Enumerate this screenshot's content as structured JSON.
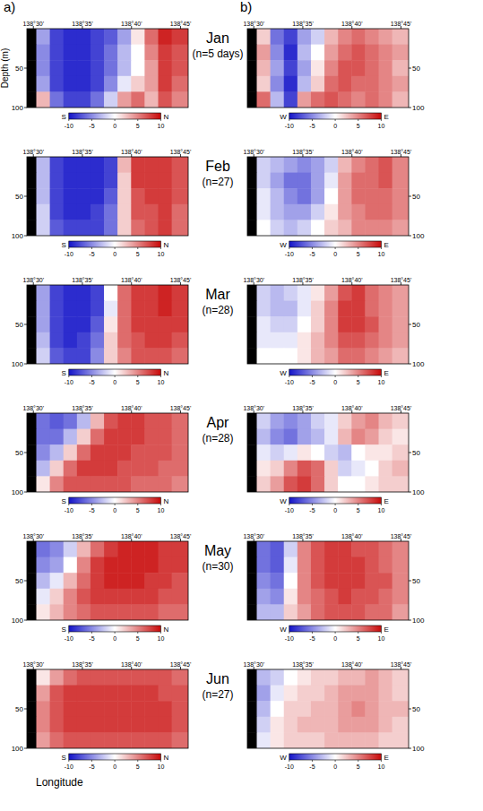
{
  "chart_data": {
    "type": "heatmap",
    "panel_letters": [
      "a)",
      "b)"
    ],
    "y_title": "Depth (m)",
    "x_title": "Longitude",
    "xlim": [
      138.489,
      138.763
    ],
    "xticks": [
      {
        "value": 138.5,
        "label": "138°30'"
      },
      {
        "value": 138.5833,
        "label": "138°35'"
      },
      {
        "value": 138.6667,
        "label": "138°40'"
      },
      {
        "value": 138.75,
        "label": "138°45'"
      }
    ],
    "ylim": [
      0,
      100
    ],
    "yticks": [
      50,
      100
    ],
    "x_edges": [
      138.489,
      138.505,
      138.528,
      138.551,
      138.574,
      138.597,
      138.62,
      138.643,
      138.666,
      138.689,
      138.712,
      138.735,
      138.763
    ],
    "depth_edges": [
      0,
      20,
      40,
      60,
      80,
      100
    ],
    "colorbar": {
      "range": [
        -10,
        10
      ],
      "ticks": [
        -10,
        -5,
        0,
        5,
        10
      ],
      "colors": [
        "#1414c8",
        "#ffffff",
        "#c80a0a"
      ]
    },
    "components": [
      {
        "low_label": "S",
        "high_label": "N"
      },
      {
        "low_label": "W",
        "high_label": "E"
      }
    ],
    "panels": [
      {
        "month": "Jan",
        "n_label": "(n=5 days)",
        "cells": [
          [
            [
              null,
              -4,
              -8,
              -9,
              -9,
              -8,
              -7,
              -4,
              1,
              6,
              9,
              8
            ],
            [
              null,
              -5,
              -8,
              -9,
              -9,
              -8,
              -6,
              -3,
              0,
              5,
              8,
              7
            ],
            [
              null,
              -5,
              -8,
              -9,
              -9,
              -8,
              -6,
              -3,
              0,
              4,
              8,
              7
            ],
            [
              null,
              -4,
              -8,
              -9,
              -9,
              -8,
              -5,
              -1,
              2,
              4,
              8,
              6
            ],
            [
              null,
              3,
              -6,
              -8,
              -8,
              -6,
              -2,
              4,
              6,
              3,
              7,
              5
            ]
          ],
          [
            [
              null,
              2,
              -6,
              -8,
              -4,
              -2,
              3,
              5,
              6,
              5,
              4,
              3
            ],
            [
              null,
              4,
              -5,
              -9,
              -3,
              0,
              4,
              6,
              7,
              6,
              5,
              4
            ],
            [
              null,
              3,
              -4,
              -8,
              -4,
              1,
              5,
              7,
              7,
              6,
              5,
              3
            ],
            [
              null,
              2,
              -5,
              -9,
              -3,
              2,
              6,
              7,
              6,
              6,
              5,
              4
            ],
            [
              null,
              6,
              -3,
              -8,
              4,
              6,
              7,
              6,
              5,
              6,
              5,
              3
            ]
          ]
        ]
      },
      {
        "month": "Feb",
        "n_label": "(n=27)",
        "cells": [
          [
            [
              null,
              -3,
              -8,
              -9,
              -9,
              -9,
              -8,
              3,
              8,
              8,
              8,
              7
            ],
            [
              null,
              -3,
              -8,
              -9,
              -9,
              -9,
              -8,
              2,
              8,
              8,
              8,
              7
            ],
            [
              null,
              -3,
              -8,
              -9,
              -9,
              -9,
              -7,
              2,
              7,
              8,
              8,
              7
            ],
            [
              null,
              -2,
              -8,
              -9,
              -9,
              -8,
              -6,
              2,
              7,
              7,
              8,
              6
            ],
            [
              null,
              -2,
              -7,
              -8,
              -8,
              -8,
              -6,
              2,
              6,
              7,
              8,
              6
            ]
          ],
          [
            [
              null,
              -2,
              -3,
              -4,
              -5,
              -4,
              -2,
              3,
              5,
              6,
              7,
              5
            ],
            [
              null,
              -2,
              -4,
              -6,
              -6,
              -4,
              -1,
              4,
              6,
              6,
              7,
              5
            ],
            [
              null,
              -1,
              -3,
              -5,
              -6,
              -4,
              0,
              4,
              6,
              6,
              6,
              5
            ],
            [
              null,
              -1,
              -3,
              -4,
              -4,
              -2,
              1,
              4,
              5,
              6,
              6,
              5
            ],
            [
              null,
              0,
              -2,
              -3,
              -2,
              0,
              2,
              3,
              5,
              5,
              5,
              4
            ]
          ]
        ]
      },
      {
        "month": "Mar",
        "n_label": "(n=28)",
        "cells": [
          [
            [
              null,
              -4,
              -8,
              -9,
              -9,
              -8,
              0,
              6,
              8,
              8,
              9,
              8
            ],
            [
              null,
              -4,
              -8,
              -9,
              -9,
              -8,
              -1,
              6,
              8,
              8,
              9,
              8
            ],
            [
              null,
              -4,
              -8,
              -9,
              -9,
              -7,
              1,
              6,
              8,
              8,
              8,
              8
            ],
            [
              null,
              -3,
              -8,
              -9,
              -8,
              -6,
              2,
              6,
              7,
              8,
              8,
              7
            ],
            [
              null,
              -2,
              -7,
              -8,
              -8,
              -5,
              2,
              5,
              7,
              7,
              7,
              6
            ]
          ],
          [
            [
              null,
              -2,
              -3,
              -2,
              -1,
              1,
              4,
              7,
              8,
              6,
              5,
              4
            ],
            [
              null,
              -2,
              -3,
              -3,
              -1,
              2,
              5,
              8,
              8,
              6,
              5,
              4
            ],
            [
              null,
              -1,
              -2,
              -2,
              0,
              2,
              5,
              8,
              8,
              7,
              5,
              4
            ],
            [
              null,
              -1,
              -1,
              -1,
              1,
              3,
              5,
              7,
              7,
              6,
              5,
              4
            ],
            [
              null,
              0,
              0,
              0,
              1,
              3,
              4,
              6,
              6,
              5,
              4,
              3
            ]
          ]
        ]
      },
      {
        "month": "Apr",
        "n_label": "(n=28)",
        "cells": [
          [
            [
              null,
              -6,
              -7,
              -6,
              -3,
              3,
              7,
              8,
              8,
              7,
              7,
              6
            ],
            [
              null,
              -6,
              -6,
              -3,
              2,
              6,
              8,
              8,
              8,
              7,
              7,
              6
            ],
            [
              null,
              -5,
              -3,
              2,
              6,
              8,
              8,
              8,
              7,
              7,
              7,
              6
            ],
            [
              null,
              -3,
              2,
              6,
              8,
              8,
              8,
              7,
              7,
              7,
              6,
              6
            ],
            [
              null,
              1,
              5,
              7,
              7,
              7,
              7,
              7,
              6,
              6,
              6,
              5
            ]
          ],
          [
            [
              null,
              -2,
              -4,
              -5,
              -4,
              -2,
              -1,
              2,
              4,
              5,
              3,
              2
            ],
            [
              null,
              -3,
              -5,
              -6,
              -4,
              -3,
              -1,
              3,
              5,
              4,
              2,
              1
            ],
            [
              null,
              -1,
              -2,
              -1,
              1,
              0,
              -2,
              -3,
              0,
              1,
              1,
              2
            ],
            [
              null,
              1,
              2,
              5,
              7,
              6,
              2,
              -2,
              -1,
              0,
              2,
              3
            ],
            [
              null,
              2,
              4,
              7,
              8,
              6,
              2,
              0,
              0,
              1,
              2,
              2
            ]
          ]
        ]
      },
      {
        "month": "May",
        "n_label": "(n=30)",
        "cells": [
          [
            [
              null,
              -6,
              -5,
              -2,
              3,
              6,
              8,
              9,
              9,
              9,
              8,
              8
            ],
            [
              null,
              -5,
              -4,
              0,
              5,
              8,
              9,
              9,
              9,
              9,
              8,
              8
            ],
            [
              null,
              -3,
              -1,
              3,
              6,
              8,
              9,
              9,
              9,
              8,
              8,
              7
            ],
            [
              null,
              -1,
              2,
              5,
              7,
              8,
              8,
              8,
              8,
              8,
              7,
              7
            ],
            [
              null,
              1,
              3,
              5,
              6,
              7,
              7,
              7,
              7,
              7,
              6,
              6
            ]
          ],
          [
            [
              null,
              -6,
              -7,
              -2,
              5,
              7,
              8,
              8,
              7,
              7,
              6,
              5
            ],
            [
              null,
              -6,
              -7,
              -1,
              5,
              7,
              8,
              8,
              8,
              7,
              6,
              5
            ],
            [
              null,
              -5,
              -6,
              0,
              5,
              7,
              8,
              8,
              8,
              7,
              7,
              5
            ],
            [
              null,
              -4,
              -5,
              1,
              5,
              6,
              7,
              8,
              7,
              7,
              6,
              5
            ],
            [
              null,
              -3,
              -3,
              2,
              4,
              6,
              7,
              7,
              7,
              6,
              6,
              4
            ]
          ]
        ]
      },
      {
        "month": "Jun",
        "n_label": "(n=27)",
        "cells": [
          [
            [
              null,
              1,
              4,
              6,
              7,
              7,
              7,
              7,
              7,
              7,
              7,
              6
            ],
            [
              null,
              4,
              7,
              8,
              8,
              8,
              8,
              8,
              8,
              8,
              7,
              7
            ],
            [
              null,
              5,
              7,
              8,
              8,
              8,
              8,
              8,
              8,
              8,
              8,
              7
            ],
            [
              null,
              5,
              7,
              8,
              8,
              8,
              8,
              8,
              8,
              8,
              8,
              7
            ],
            [
              null,
              4,
              6,
              7,
              7,
              7,
              7,
              7,
              7,
              7,
              7,
              6
            ]
          ],
          [
            [
              null,
              -3,
              -2,
              0,
              1,
              2,
              2,
              3,
              3,
              4,
              3,
              2
            ],
            [
              null,
              -4,
              -1,
              1,
              2,
              2,
              3,
              4,
              4,
              4,
              3,
              2
            ],
            [
              null,
              -3,
              0,
              2,
              2,
              3,
              3,
              4,
              5,
              4,
              3,
              3
            ],
            [
              null,
              -2,
              1,
              2,
              3,
              3,
              3,
              4,
              4,
              4,
              3,
              2
            ],
            [
              null,
              -1,
              1,
              2,
              2,
              2,
              3,
              3,
              3,
              3,
              2,
              2
            ]
          ]
        ]
      }
    ]
  }
}
